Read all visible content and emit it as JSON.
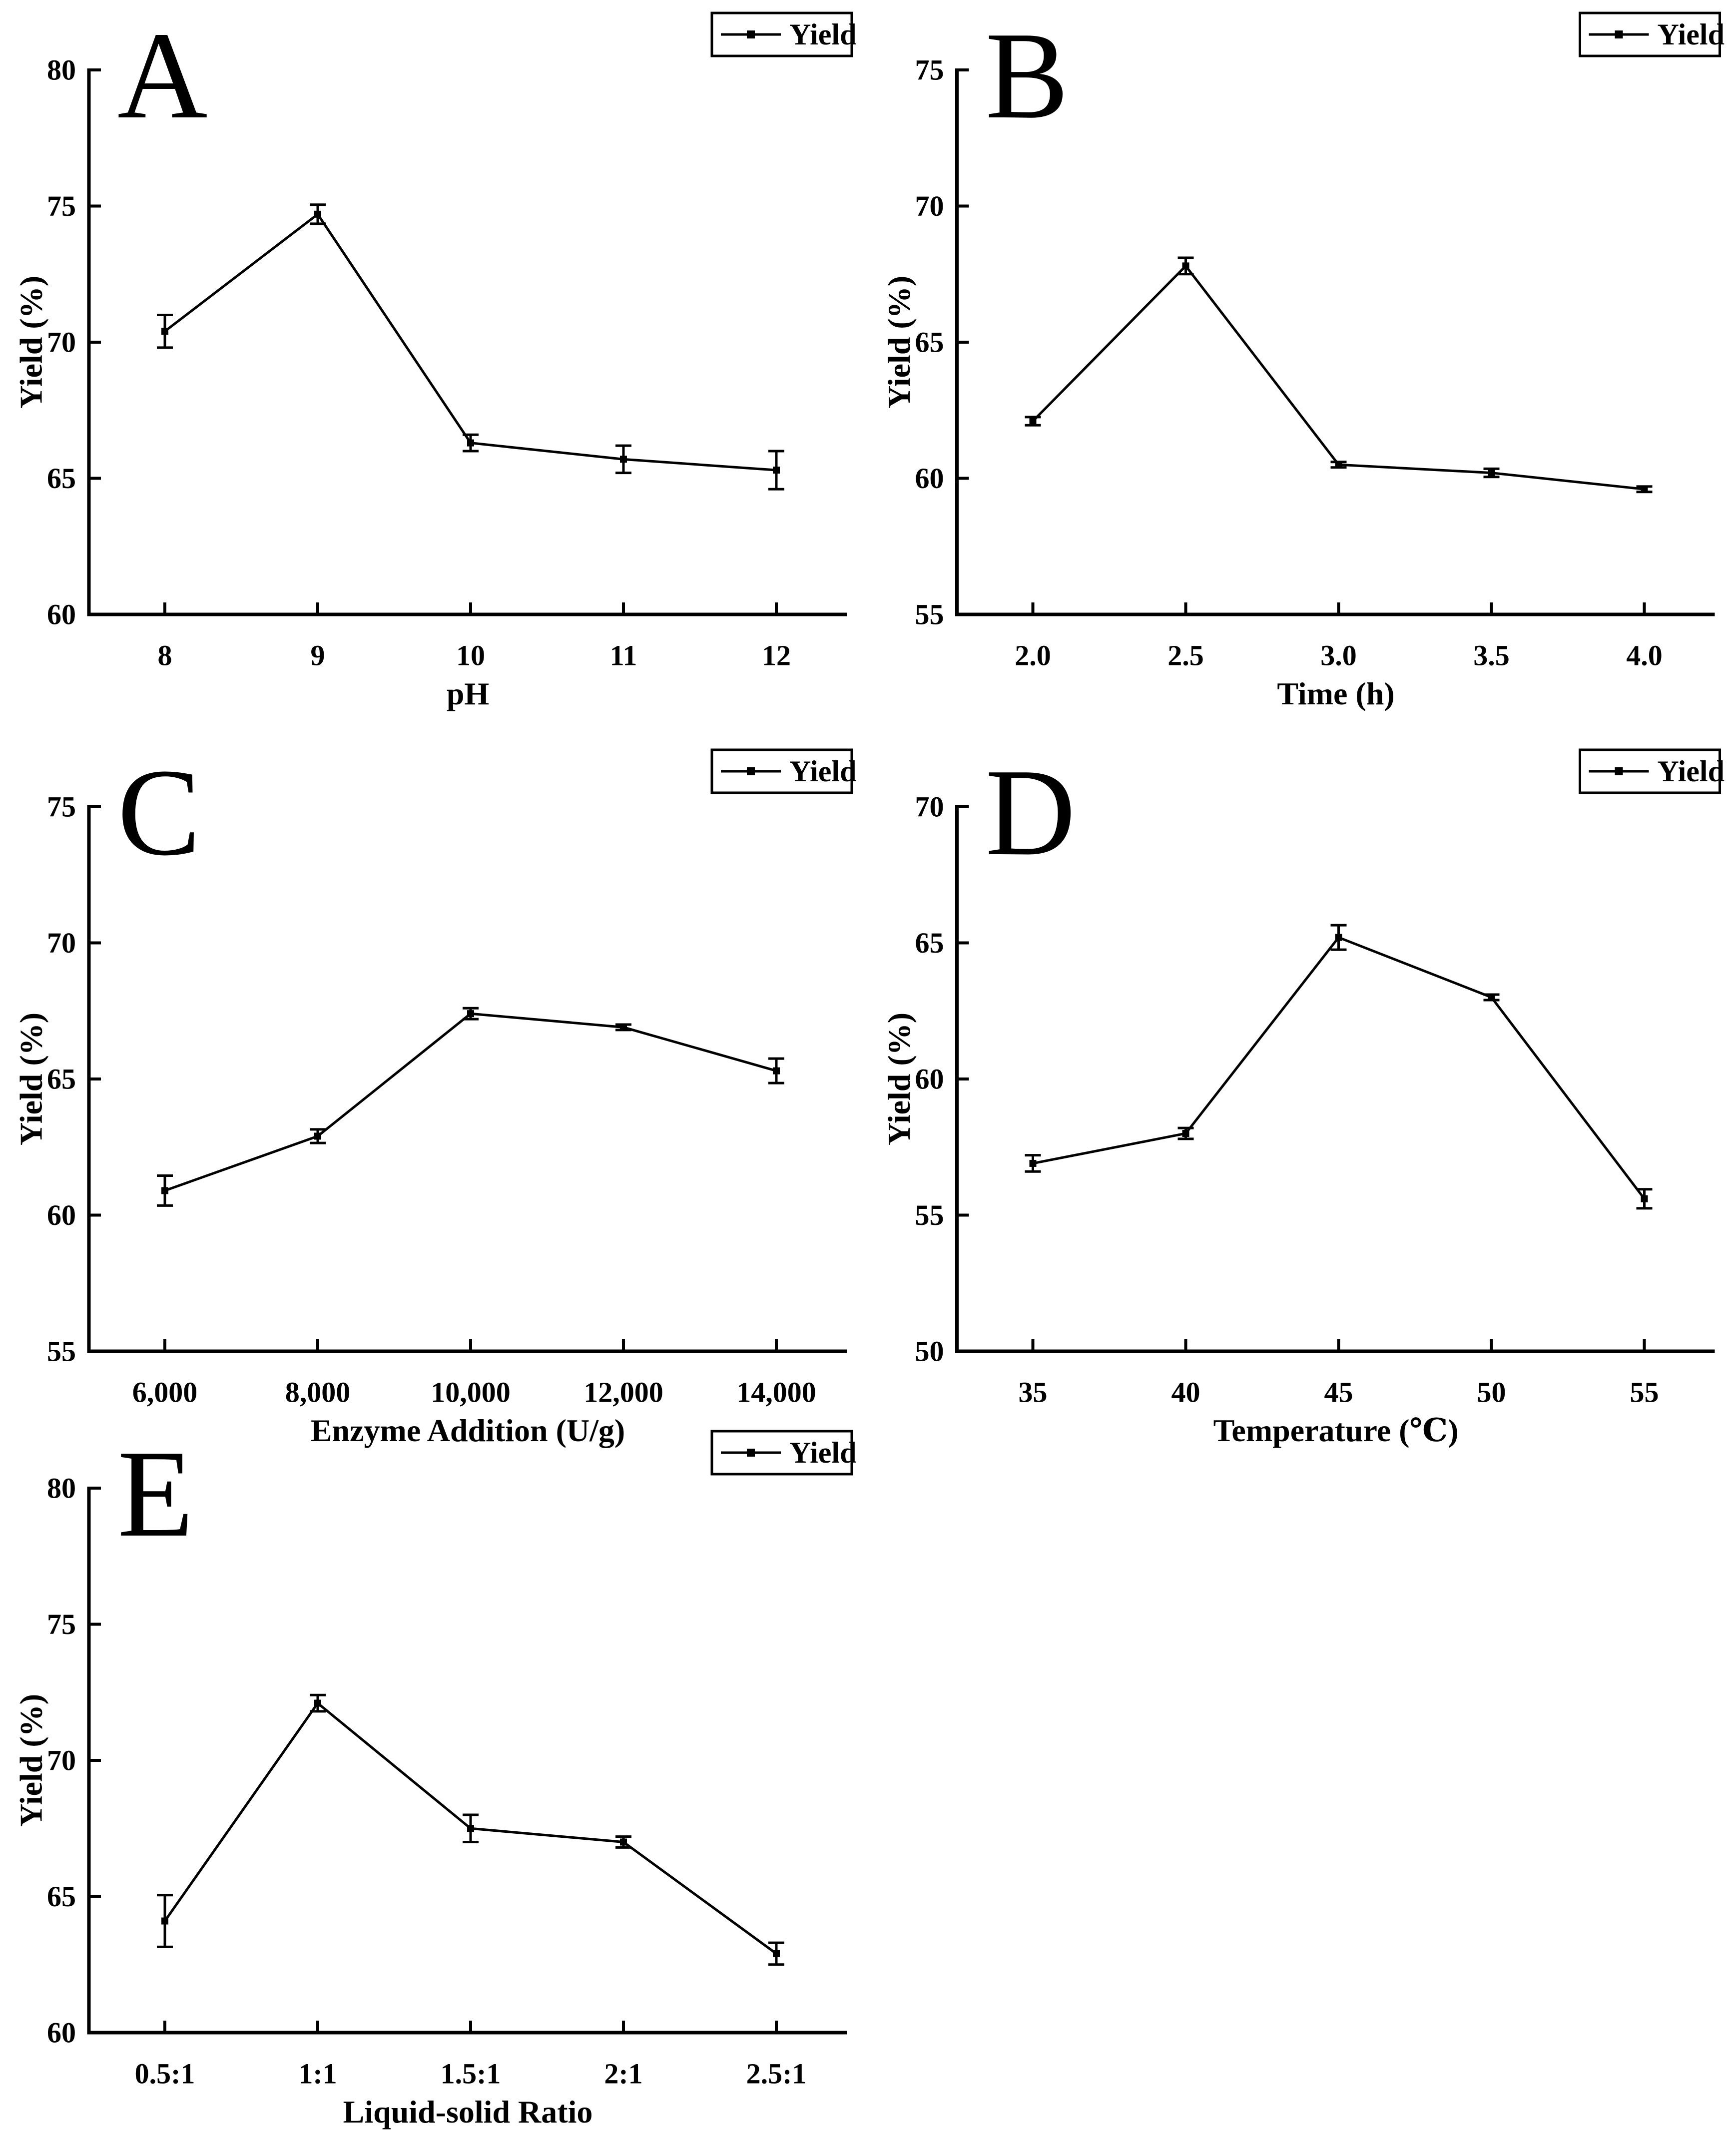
{
  "figure": {
    "background": "#ffffff",
    "ink": "#000000",
    "ylabel": "Yield (%)",
    "legend_label": "Yield"
  },
  "chart_data": [
    {
      "type": "line",
      "panel_label": "A",
      "xlabel": "pH",
      "ylabel": "Yield (%)",
      "legend": [
        "Yield"
      ],
      "legend_position": "top-right",
      "grid": false,
      "x_tick_labels": [
        "8",
        "9",
        "10",
        "11",
        "12"
      ],
      "ylim": [
        60,
        80
      ],
      "yticks": [
        60,
        65,
        70,
        75,
        80
      ],
      "series": [
        {
          "name": "Yield",
          "values": [
            70.4,
            74.7,
            66.3,
            65.7,
            65.3
          ],
          "errors": [
            0.6,
            0.35,
            0.3,
            0.5,
            0.7
          ]
        }
      ]
    },
    {
      "type": "line",
      "panel_label": "B",
      "xlabel": "Time (h)",
      "ylabel": "Yield (%)",
      "legend": [
        "Yield"
      ],
      "legend_position": "top-right",
      "grid": false,
      "x_tick_labels": [
        "2.0",
        "2.5",
        "3.0",
        "3.5",
        "4.0"
      ],
      "ylim": [
        55,
        75
      ],
      "yticks": [
        55,
        60,
        65,
        70,
        75
      ],
      "series": [
        {
          "name": "Yield",
          "values": [
            62.1,
            67.8,
            60.5,
            60.2,
            59.6
          ],
          "errors": [
            0.15,
            0.3,
            0.1,
            0.15,
            0.1
          ]
        }
      ]
    },
    {
      "type": "line",
      "panel_label": "C",
      "xlabel": "Enzyme Addition (U/g)",
      "ylabel": "Yield (%)",
      "legend": [
        "Yield"
      ],
      "legend_position": "top-right",
      "grid": false,
      "x_tick_labels": [
        "6,000",
        "8,000",
        "10,000",
        "12,000",
        "14,000"
      ],
      "ylim": [
        55,
        75
      ],
      "yticks": [
        55,
        60,
        65,
        70,
        75
      ],
      "series": [
        {
          "name": "Yield",
          "values": [
            60.9,
            62.9,
            67.4,
            66.9,
            65.3
          ],
          "errors": [
            0.55,
            0.25,
            0.2,
            0.1,
            0.45
          ]
        }
      ]
    },
    {
      "type": "line",
      "panel_label": "D",
      "xlabel": "Temperature (℃)",
      "ylabel": "Yield (%)",
      "legend": [
        "Yield"
      ],
      "legend_position": "top-right",
      "grid": false,
      "x_tick_labels": [
        "35",
        "40",
        "45",
        "50",
        "55"
      ],
      "ylim": [
        50,
        70
      ],
      "yticks": [
        50,
        55,
        60,
        65,
        70
      ],
      "series": [
        {
          "name": "Yield",
          "values": [
            56.9,
            58.0,
            65.2,
            63.0,
            55.6
          ],
          "errors": [
            0.3,
            0.2,
            0.45,
            0.1,
            0.35
          ]
        }
      ]
    },
    {
      "type": "line",
      "panel_label": "E",
      "xlabel": "Liquid-solid Ratio",
      "ylabel": "Yield (%)",
      "legend": [
        "Yield"
      ],
      "legend_position": "top-right",
      "grid": false,
      "x_tick_labels": [
        "0.5:1",
        "1:1",
        "1.5:1",
        "2:1",
        "2.5:1"
      ],
      "ylim": [
        60,
        80
      ],
      "yticks": [
        60,
        65,
        70,
        75,
        80
      ],
      "series": [
        {
          "name": "Yield",
          "values": [
            64.1,
            72.1,
            67.5,
            67.0,
            62.9
          ],
          "errors": [
            0.95,
            0.3,
            0.5,
            0.2,
            0.4
          ]
        }
      ]
    }
  ]
}
